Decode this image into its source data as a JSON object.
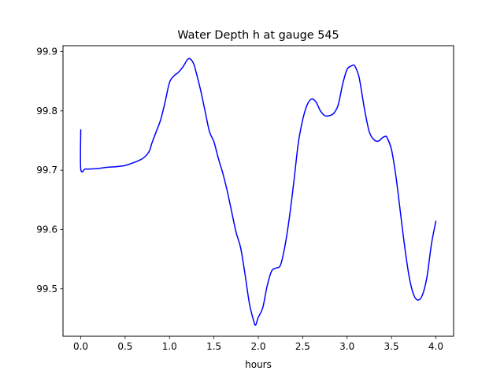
{
  "chart_data": {
    "type": "line",
    "title": "Water Depth h at gauge 545",
    "xlabel": "hours",
    "ylabel": "",
    "xlim": [
      -0.2,
      4.2
    ],
    "ylim": [
      99.42,
      99.91
    ],
    "grid": false,
    "xticks": [
      0.0,
      0.5,
      1.0,
      1.5,
      2.0,
      2.5,
      3.0,
      3.5,
      4.0
    ],
    "xtick_labels": [
      "0.0",
      "0.5",
      "1.0",
      "1.5",
      "2.0",
      "2.5",
      "3.0",
      "3.5",
      "4.0"
    ],
    "yticks": [
      99.5,
      99.6,
      99.7,
      99.8,
      99.9
    ],
    "ytick_labels": [
      "99.5",
      "99.6",
      "99.7",
      "99.8",
      "99.9"
    ],
    "series": [
      {
        "color": "#0000ff",
        "x": [
          0.0,
          0.0,
          0.05,
          0.1,
          0.2,
          0.3,
          0.4,
          0.5,
          0.6,
          0.65,
          0.7,
          0.75,
          0.78,
          0.8,
          0.85,
          0.9,
          0.95,
          1.0,
          1.05,
          1.1,
          1.15,
          1.2,
          1.23,
          1.27,
          1.3,
          1.35,
          1.4,
          1.45,
          1.5,
          1.55,
          1.6,
          1.65,
          1.7,
          1.75,
          1.8,
          1.85,
          1.9,
          1.95,
          1.97,
          2.0,
          2.05,
          2.1,
          2.15,
          2.2,
          2.25,
          2.3,
          2.35,
          2.4,
          2.45,
          2.5,
          2.55,
          2.6,
          2.65,
          2.7,
          2.75,
          2.8,
          2.85,
          2.9,
          2.95,
          3.0,
          3.05,
          3.08,
          3.1,
          3.13,
          3.15,
          3.2,
          3.25,
          3.3,
          3.35,
          3.4,
          3.43,
          3.45,
          3.5,
          3.55,
          3.6,
          3.65,
          3.7,
          3.75,
          3.8,
          3.85,
          3.9,
          3.95,
          4.0
        ],
        "y": [
          99.768,
          99.702,
          99.702,
          99.702,
          99.703,
          99.705,
          99.706,
          99.708,
          99.713,
          99.716,
          99.72,
          99.727,
          99.735,
          99.745,
          99.765,
          99.785,
          99.815,
          99.848,
          99.859,
          99.865,
          99.874,
          99.886,
          99.888,
          99.88,
          99.865,
          99.835,
          99.8,
          99.765,
          99.748,
          99.72,
          99.695,
          99.665,
          99.63,
          99.595,
          99.57,
          99.525,
          99.475,
          99.445,
          99.439,
          99.452,
          99.468,
          99.505,
          99.53,
          99.535,
          99.54,
          99.572,
          99.62,
          99.68,
          99.745,
          99.785,
          99.81,
          99.82,
          99.815,
          99.8,
          99.792,
          99.792,
          99.796,
          99.81,
          99.845,
          99.87,
          99.876,
          99.877,
          99.872,
          99.86,
          99.845,
          99.8,
          99.765,
          99.752,
          99.749,
          99.755,
          99.757,
          99.755,
          99.735,
          99.69,
          99.63,
          99.57,
          99.52,
          99.49,
          99.481,
          99.49,
          99.52,
          99.575,
          99.614
        ]
      }
    ]
  }
}
